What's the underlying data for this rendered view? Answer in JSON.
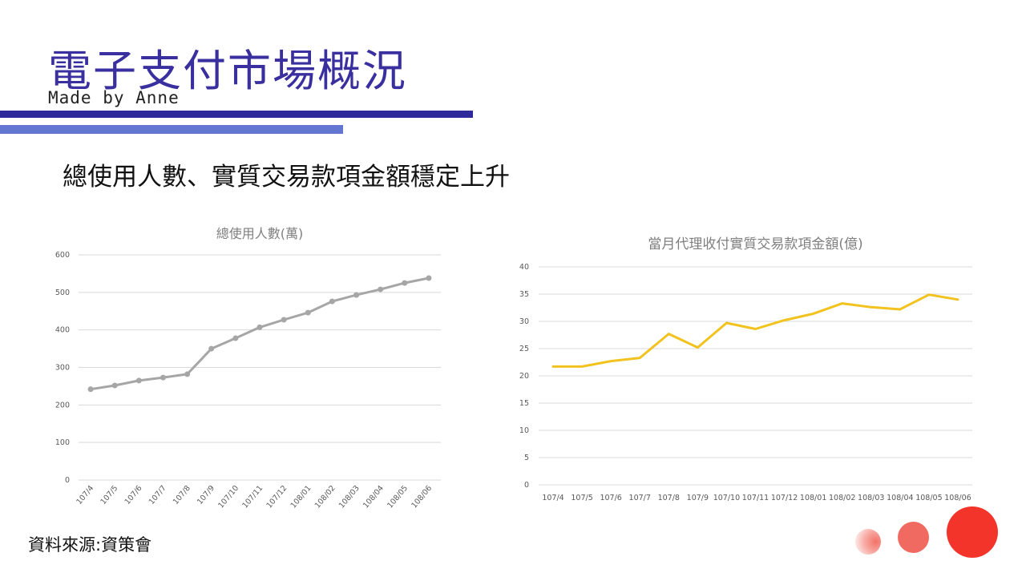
{
  "slide": {
    "title": "電子支付市場概況",
    "subtitle": "Made by Anne",
    "headline": "總使用人數、實質交易款項金額穩定上升",
    "source": "資料來源:資策會"
  },
  "chart_data": [
    {
      "type": "line",
      "title": "總使用人數(萬)",
      "categories": [
        "107/4",
        "107/5",
        "107/6",
        "107/7",
        "107/8",
        "107/9",
        "107/10",
        "107/11",
        "107/12",
        "108/01",
        "108/02",
        "108/03",
        "108/04",
        "108/05",
        "108/06"
      ],
      "series": [
        {
          "values": [
            242,
            252,
            265,
            273,
            282,
            350,
            378,
            407,
            427,
            446,
            476,
            493,
            508,
            525,
            538
          ]
        }
      ],
      "ylim": [
        0,
        600
      ],
      "yticks": [
        0,
        100,
        200,
        300,
        400,
        500,
        600
      ],
      "grid": true,
      "markers": true,
      "color": "#a6a6a6"
    },
    {
      "type": "line",
      "title": "當月代理收付實質交易款項金額(億)",
      "categories": [
        "107/4",
        "107/5",
        "107/6",
        "107/7",
        "107/8",
        "107/9",
        "107/10",
        "107/11",
        "107/12",
        "108/01",
        "108/02",
        "108/03",
        "108/04",
        "108/05",
        "108/06"
      ],
      "series": [
        {
          "values": [
            21.7,
            21.7,
            22.7,
            23.3,
            27.7,
            25.2,
            29.7,
            28.6,
            30.2,
            31.4,
            33.3,
            32.6,
            32.2,
            34.9,
            34.0
          ]
        }
      ],
      "ylim": [
        0,
        40
      ],
      "yticks": [
        0,
        5,
        10,
        15,
        20,
        25,
        30,
        35,
        40
      ],
      "grid": true,
      "markers": false,
      "color": "#f2c21e"
    }
  ]
}
